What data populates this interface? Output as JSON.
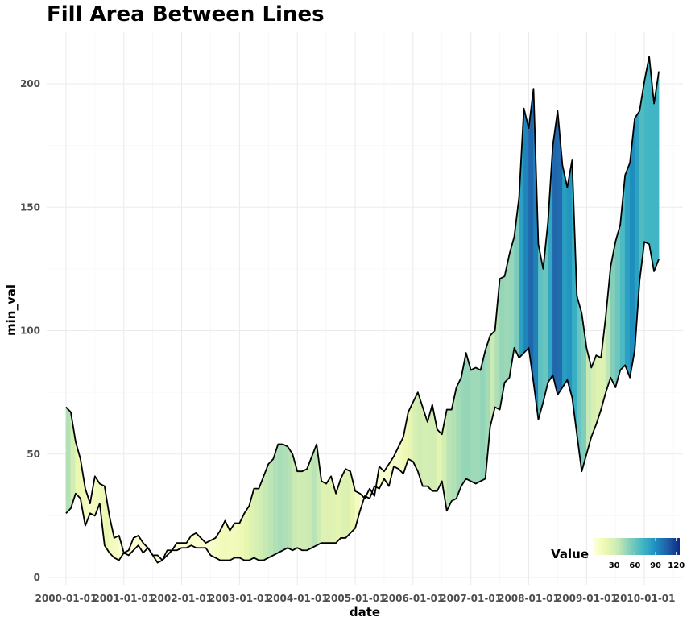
{
  "chart_data": {
    "type": "area",
    "title": "Fill Area Between Lines",
    "xlabel": "date",
    "ylabel": "min_val",
    "ylim": [
      0,
      220
    ],
    "yticks": [
      0,
      50,
      100,
      150,
      200
    ],
    "xticks": [
      "2000-01-01",
      "2001-01-01",
      "2002-01-01",
      "2003-01-01",
      "2004-01-01",
      "2005-01-01",
      "2006-01-01",
      "2007-01-01",
      "2008-01-01",
      "2009-01-01",
      "2010-01-01"
    ],
    "grid": true,
    "legend": {
      "title": "Value",
      "position": "bottom-right",
      "ticks": [
        30,
        60,
        90,
        120
      ],
      "range": [
        0,
        125
      ],
      "colors": [
        "#ffffd9",
        "#edf8b1",
        "#c7e9b4",
        "#7fcdbb",
        "#41b6c4",
        "#1d91c0",
        "#225ea8",
        "#0c2c84"
      ]
    },
    "x": [
      "2000-01",
      "2000-02",
      "2000-03",
      "2000-04",
      "2000-05",
      "2000-06",
      "2000-07",
      "2000-08",
      "2000-09",
      "2000-10",
      "2000-11",
      "2000-12",
      "2001-01",
      "2001-02",
      "2001-03",
      "2001-04",
      "2001-05",
      "2001-06",
      "2001-07",
      "2001-08",
      "2001-09",
      "2001-10",
      "2001-11",
      "2001-12",
      "2002-01",
      "2002-02",
      "2002-03",
      "2002-04",
      "2002-05",
      "2002-06",
      "2002-07",
      "2002-08",
      "2002-09",
      "2002-10",
      "2002-11",
      "2002-12",
      "2003-01",
      "2003-02",
      "2003-03",
      "2003-04",
      "2003-05",
      "2003-06",
      "2003-07",
      "2003-08",
      "2003-09",
      "2003-10",
      "2003-11",
      "2003-12",
      "2004-01",
      "2004-02",
      "2004-03",
      "2004-04",
      "2004-05",
      "2004-06",
      "2004-07",
      "2004-08",
      "2004-09",
      "2004-10",
      "2004-11",
      "2004-12",
      "2005-01",
      "2005-02",
      "2005-03",
      "2005-04",
      "2005-05",
      "2005-06",
      "2005-07",
      "2005-08",
      "2005-09",
      "2005-10",
      "2005-11",
      "2005-12",
      "2006-01",
      "2006-02",
      "2006-03",
      "2006-04",
      "2006-05",
      "2006-06",
      "2006-07",
      "2006-08",
      "2006-09",
      "2006-10",
      "2006-11",
      "2006-12",
      "2007-01",
      "2007-02",
      "2007-03",
      "2007-04",
      "2007-05",
      "2007-06",
      "2007-07",
      "2007-08",
      "2007-09",
      "2007-10",
      "2007-11",
      "2007-12",
      "2008-01",
      "2008-02",
      "2008-03",
      "2008-04",
      "2008-05",
      "2008-06",
      "2008-07",
      "2008-08",
      "2008-09",
      "2008-10",
      "2008-11",
      "2008-12",
      "2009-01",
      "2009-02",
      "2009-03",
      "2009-04",
      "2009-05",
      "2009-06",
      "2009-07",
      "2009-08",
      "2009-09",
      "2009-10",
      "2009-11",
      "2009-12",
      "2010-01",
      "2010-02",
      "2010-03",
      "2010-04"
    ],
    "series": [
      {
        "values": [
          69,
          67,
          55,
          48,
          36,
          30,
          41,
          38,
          37,
          25,
          16,
          17,
          10,
          11,
          16,
          17,
          14,
          12,
          9,
          9,
          7,
          11,
          11,
          14,
          14,
          14,
          17,
          18,
          16,
          14,
          15,
          16,
          19,
          23,
          19,
          22,
          22,
          26,
          29,
          36,
          36,
          41,
          46,
          48,
          54,
          54,
          53,
          50,
          43,
          43,
          44,
          49,
          54,
          39,
          38,
          41,
          34,
          40,
          44,
          43,
          35,
          34,
          32,
          36,
          33,
          45,
          43,
          46,
          49,
          53,
          57,
          67,
          71,
          75,
          69,
          63,
          70,
          60,
          58,
          68,
          68,
          77,
          81,
          91,
          84,
          85,
          84,
          92,
          98,
          100,
          121,
          122,
          131,
          138,
          154,
          190,
          182,
          198,
          135,
          125,
          144,
          175,
          189,
          167,
          158,
          169,
          114,
          107,
          93,
          85,
          90,
          89,
          106,
          126,
          136,
          143,
          163,
          168,
          186,
          189,
          201,
          211,
          192,
          205
        ]
      },
      {
        "values": [
          26,
          28,
          34,
          32,
          21,
          26,
          25,
          30,
          13,
          10,
          8,
          7,
          10,
          9,
          11,
          13,
          10,
          12,
          9,
          6,
          7,
          9,
          11,
          11,
          12,
          12,
          13,
          12,
          12,
          12,
          9,
          8,
          7,
          7,
          7,
          8,
          8,
          7,
          7,
          8,
          7,
          7,
          8,
          9,
          10,
          11,
          12,
          11,
          12,
          11,
          11,
          12,
          13,
          14,
          14,
          14,
          14,
          16,
          16,
          18,
          20,
          27,
          33,
          32,
          37,
          36,
          40,
          37,
          45,
          44,
          42,
          48,
          47,
          43,
          37,
          37,
          35,
          35,
          39,
          27,
          31,
          32,
          37,
          40,
          39,
          38,
          39,
          40,
          61,
          69,
          68,
          79,
          81,
          93,
          89,
          91,
          93,
          79,
          64,
          71,
          79,
          82,
          74,
          77,
          80,
          73,
          58,
          43,
          50,
          57,
          62,
          68,
          75,
          81,
          77,
          84,
          86,
          81,
          92,
          120,
          136,
          135,
          124,
          129
        ]
      }
    ]
  }
}
